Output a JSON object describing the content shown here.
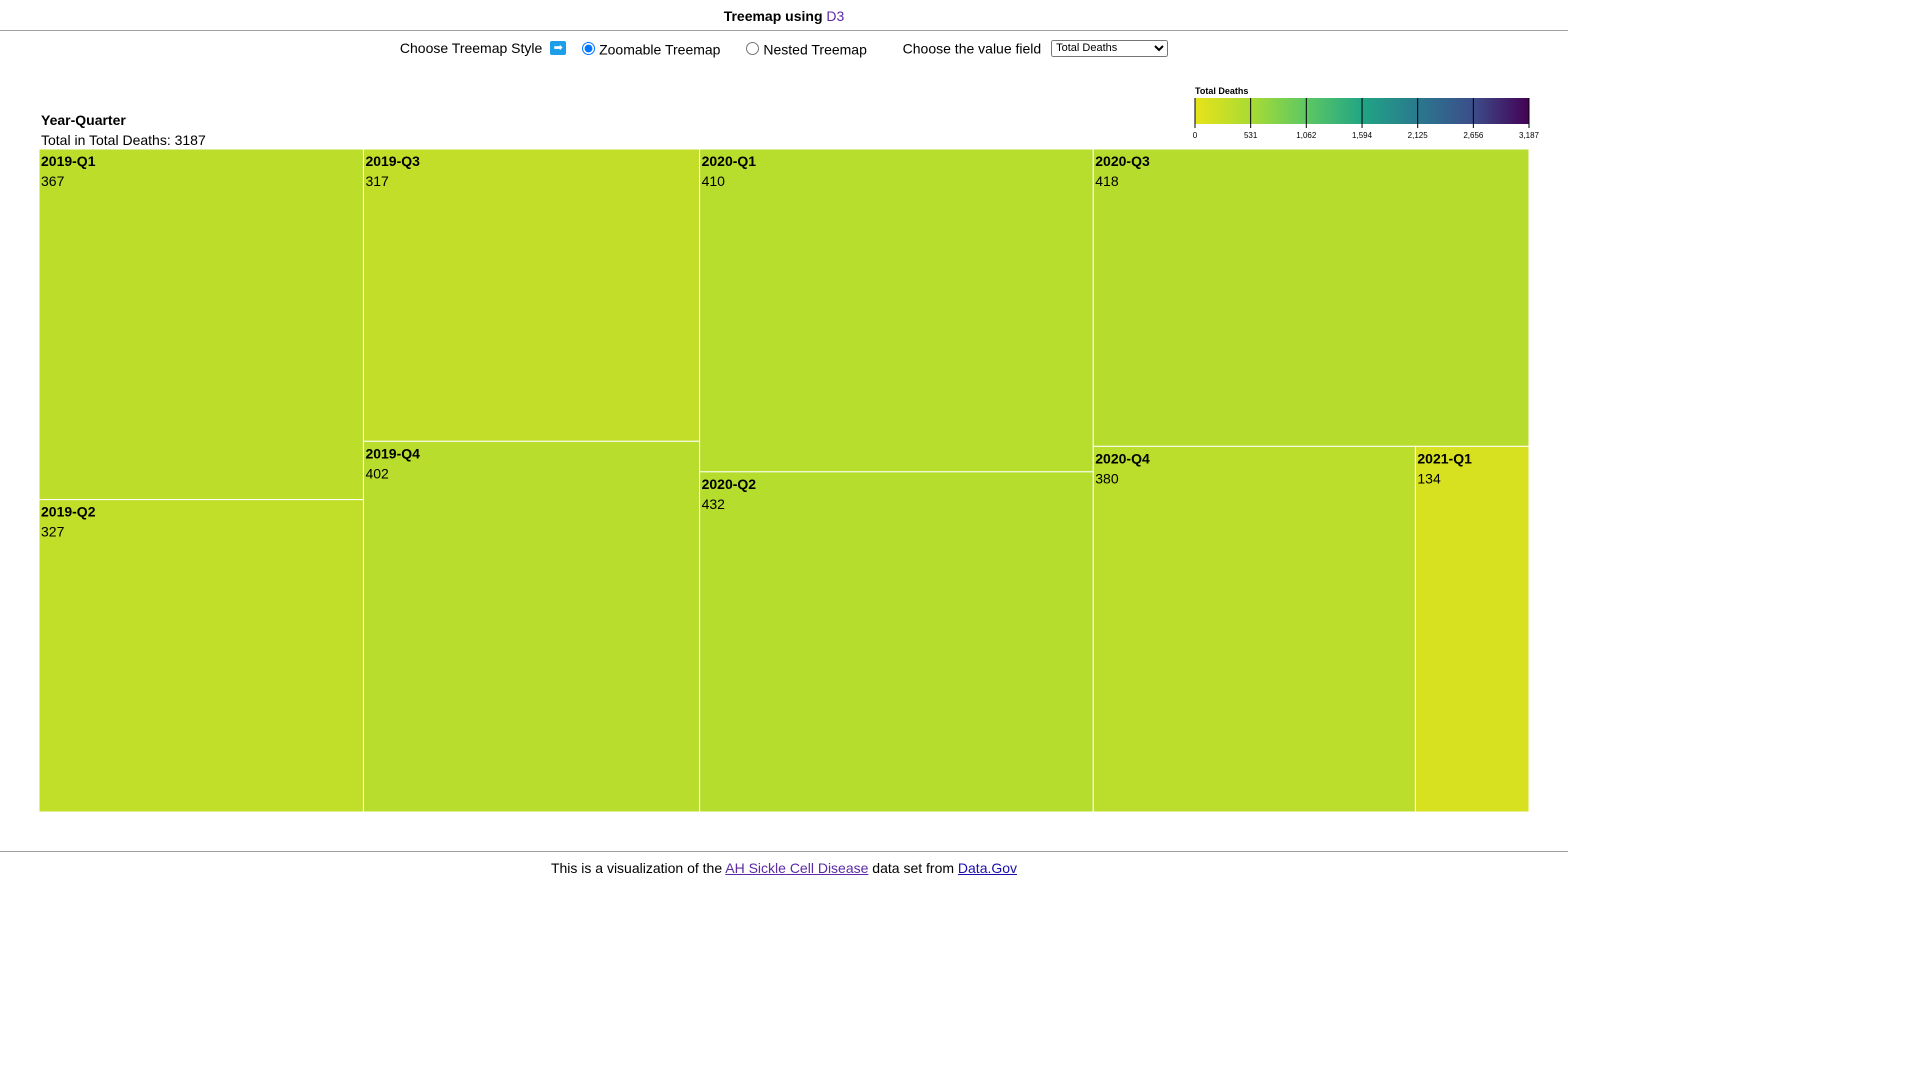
{
  "header": {
    "title_prefix": "Treemap using ",
    "title_link": "D3"
  },
  "controls": {
    "style_label": "Choose Treemap Style",
    "arrow_icon": "right-arrow-icon",
    "options": [
      {
        "label": "Zoomable Treemap",
        "checked": true
      },
      {
        "label": "Nested Treemap",
        "checked": false
      }
    ],
    "value_field_label": "Choose the value field",
    "value_field_selected": "Total Deaths"
  },
  "breadcrumb": "Year-Quarter",
  "total_line": "Total in Total Deaths: 3187",
  "chart_data": {
    "type": "treemap",
    "value_field": "Total Deaths",
    "total": 3187,
    "items": [
      {
        "name": "2019-Q1",
        "value": 367
      },
      {
        "name": "2019-Q2",
        "value": 327
      },
      {
        "name": "2019-Q3",
        "value": 317
      },
      {
        "name": "2019-Q4",
        "value": 402
      },
      {
        "name": "2020-Q1",
        "value": 410
      },
      {
        "name": "2020-Q2",
        "value": 432
      },
      {
        "name": "2020-Q3",
        "value": 418
      },
      {
        "name": "2020-Q4",
        "value": 380
      },
      {
        "name": "2021-Q1",
        "value": 134
      }
    ],
    "legend": {
      "title": "Total Deaths",
      "domain": [
        0,
        3187
      ],
      "ticks": [
        {
          "value": 0,
          "label": "0"
        },
        {
          "value": 531,
          "label": "531"
        },
        {
          "value": 1062,
          "label": "1,062"
        },
        {
          "value": 1594,
          "label": "1,594"
        },
        {
          "value": 2125,
          "label": "2,125"
        },
        {
          "value": 2656,
          "label": "2,656"
        },
        {
          "value": 3187,
          "label": "3,187"
        }
      ],
      "colorscale": "viridis-reversed",
      "placement": "top-right"
    }
  },
  "footer": {
    "prefix": "This is a visualization of the ",
    "dataset_link": "AH Sickle Cell Disease",
    "middle": " data set from ",
    "source_link": "Data.Gov"
  }
}
